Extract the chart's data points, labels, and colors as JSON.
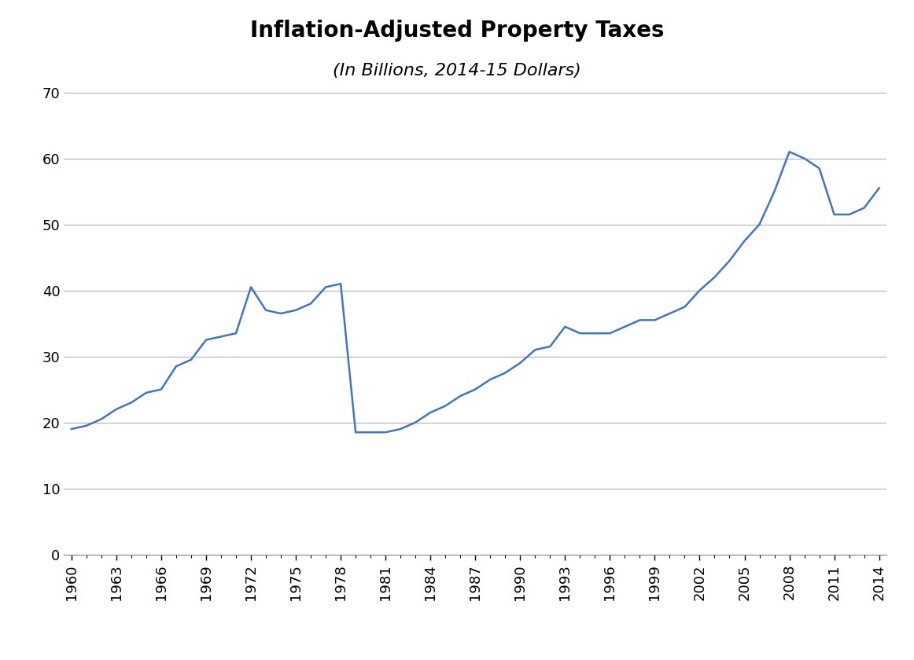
{
  "title": "Inflation-Adjusted Property Taxes",
  "subtitle": "(In Billions, 2014-15 Dollars)",
  "line_color": "#4472C4",
  "background_color": "#ffffff",
  "years": [
    1960,
    1961,
    1962,
    1963,
    1964,
    1965,
    1966,
    1967,
    1968,
    1969,
    1970,
    1971,
    1972,
    1973,
    1974,
    1975,
    1976,
    1977,
    1978,
    1979,
    1980,
    1981,
    1982,
    1983,
    1984,
    1985,
    1986,
    1987,
    1988,
    1989,
    1990,
    1991,
    1992,
    1993,
    1994,
    1995,
    1996,
    1997,
    1998,
    1999,
    2000,
    2001,
    2002,
    2003,
    2004,
    2005,
    2006,
    2007,
    2008,
    2009,
    2010,
    2011,
    2012,
    2013,
    2014
  ],
  "values": [
    19.0,
    19.5,
    20.5,
    22.0,
    23.0,
    24.5,
    25.0,
    28.5,
    29.5,
    32.5,
    33.0,
    33.5,
    40.5,
    37.0,
    36.5,
    37.0,
    38.0,
    40.5,
    41.0,
    18.5,
    18.5,
    18.5,
    19.0,
    20.0,
    21.5,
    22.5,
    24.0,
    25.0,
    26.5,
    27.5,
    29.0,
    31.0,
    31.5,
    34.5,
    33.5,
    33.5,
    33.5,
    34.5,
    35.5,
    35.5,
    36.5,
    37.5,
    40.0,
    42.0,
    44.5,
    47.5,
    50.0,
    55.0,
    61.0,
    60.0,
    58.5,
    51.5,
    51.5,
    52.5,
    55.5
  ],
  "ylim": [
    0,
    70
  ],
  "yticks": [
    0,
    10,
    20,
    30,
    40,
    50,
    60,
    70
  ],
  "xtick_years": [
    1960,
    1963,
    1966,
    1969,
    1972,
    1975,
    1978,
    1981,
    1984,
    1987,
    1990,
    1993,
    1996,
    1999,
    2002,
    2005,
    2008,
    2011,
    2014
  ],
  "all_years_start": 1960,
  "all_years_end": 2014,
  "line_width": 1.8,
  "title_fontsize": 20,
  "subtitle_fontsize": 16,
  "tick_fontsize": 13,
  "grid_color": "#b0b0b0",
  "grid_linewidth": 0.8
}
